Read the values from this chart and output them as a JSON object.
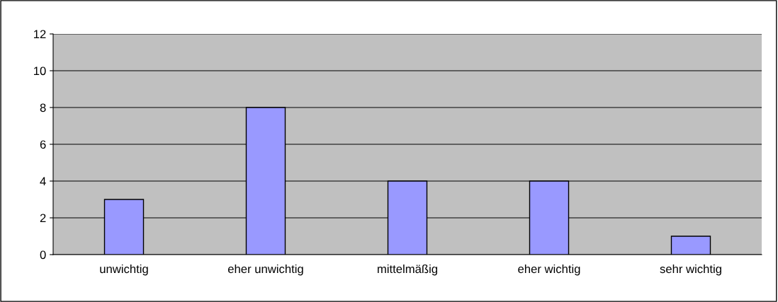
{
  "chart_data": {
    "type": "bar",
    "categories": [
      "unwichtig",
      "eher unwichtig",
      "mittelmäßig",
      "eher wichtig",
      "sehr wichtig"
    ],
    "values": [
      3,
      8,
      4,
      4,
      1
    ],
    "color": "#9999ff",
    "ylim": [
      0,
      12
    ],
    "yticks": [
      0,
      2,
      4,
      6,
      8,
      10,
      12
    ],
    "grid": "y",
    "legend": false
  }
}
